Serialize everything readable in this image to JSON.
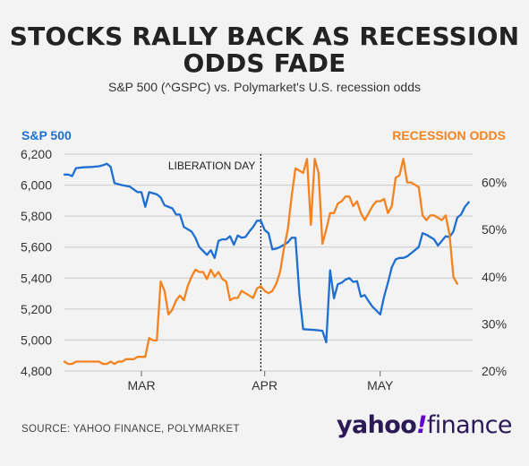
{
  "title_line1": "STOCKS RALLY BACK AS RECESSION",
  "title_line2": "ODDS FADE",
  "subtitle": "S&P 500 (^GSPC) vs. Polymarket's U.S. recession odds",
  "source": "SOURCE: YAHOO FINANCE, POLYMARKET",
  "logo": {
    "word": "yahoo",
    "mark": "!",
    "suffix": "finance"
  },
  "colors": {
    "sp500": "#1f6fd1",
    "recession": "#f4831f",
    "grid": "#c9c9c9",
    "text": "#333333"
  },
  "chart_data": {
    "type": "line",
    "title": "STOCKS RALLY BACK AS RECESSION ODDS FADE",
    "left_axis_label": "S&P 500",
    "right_axis_label": "RECESSION ODDS",
    "x_tick_labels": [
      "MAR",
      "APR",
      "MAY"
    ],
    "y_left_ticks": [
      "6,200",
      "6,000",
      "5,800",
      "5,600",
      "5,400",
      "5,200",
      "5,000",
      "4,800"
    ],
    "y_right_ticks": [
      "60%",
      "50%",
      "40%",
      "30%",
      "20%"
    ],
    "ylim_left": [
      4800,
      6200
    ],
    "ylim_right": [
      20,
      66
    ],
    "annotation": "LIBERATION DAY",
    "grid": true,
    "x_index_range": [
      0,
      106
    ],
    "x_tick_index": [
      20,
      52,
      82
    ],
    "annotation_index": 51,
    "series": [
      {
        "name": "S&P 500",
        "axis": "left",
        "points": [
          [
            0,
            6068
          ],
          [
            1,
            6068
          ],
          [
            2,
            6058
          ],
          [
            3,
            6110
          ],
          [
            5,
            6115
          ],
          [
            7,
            6117
          ],
          [
            9,
            6122
          ],
          [
            10,
            6128
          ],
          [
            11,
            6138
          ],
          [
            12,
            6118
          ],
          [
            13,
            6013
          ],
          [
            15,
            6000
          ],
          [
            17,
            5990
          ],
          [
            19,
            5955
          ],
          [
            20,
            5955
          ],
          [
            21,
            5860
          ],
          [
            22,
            5955
          ],
          [
            24,
            5940
          ],
          [
            25,
            5920
          ],
          [
            26,
            5870
          ],
          [
            28,
            5850
          ],
          [
            29,
            5810
          ],
          [
            30,
            5810
          ],
          [
            31,
            5730
          ],
          [
            33,
            5700
          ],
          [
            34,
            5660
          ],
          [
            35,
            5600
          ],
          [
            36,
            5575
          ],
          [
            37,
            5550
          ],
          [
            38,
            5580
          ],
          [
            39,
            5530
          ],
          [
            40,
            5640
          ],
          [
            41,
            5650
          ],
          [
            42,
            5650
          ],
          [
            43,
            5670
          ],
          [
            44,
            5615
          ],
          [
            45,
            5675
          ],
          [
            46,
            5660
          ],
          [
            47,
            5665
          ],
          [
            48,
            5700
          ],
          [
            49,
            5730
          ],
          [
            50,
            5770
          ],
          [
            51,
            5770
          ],
          [
            52,
            5710
          ],
          [
            53,
            5690
          ],
          [
            54,
            5585
          ],
          [
            55,
            5590
          ],
          [
            56,
            5600
          ],
          [
            57,
            5615
          ],
          [
            58,
            5630
          ],
          [
            59,
            5660
          ],
          [
            60,
            5660
          ],
          [
            61,
            5300
          ],
          [
            62,
            5070
          ],
          [
            65,
            5065
          ],
          [
            67,
            5060
          ],
          [
            68,
            4985
          ],
          [
            69,
            5450
          ],
          [
            70,
            5270
          ],
          [
            71,
            5360
          ],
          [
            72,
            5370
          ],
          [
            73,
            5390
          ],
          [
            74,
            5400
          ],
          [
            75,
            5375
          ],
          [
            76,
            5380
          ],
          [
            77,
            5280
          ],
          [
            78,
            5290
          ],
          [
            79,
            5250
          ],
          [
            80,
            5215
          ],
          [
            81,
            5190
          ],
          [
            82,
            5165
          ],
          [
            83,
            5280
          ],
          [
            84,
            5370
          ],
          [
            85,
            5470
          ],
          [
            86,
            5520
          ],
          [
            87,
            5530
          ],
          [
            88,
            5530
          ],
          [
            89,
            5540
          ],
          [
            90,
            5560
          ],
          [
            91,
            5580
          ],
          [
            92,
            5600
          ],
          [
            93,
            5690
          ],
          [
            94,
            5680
          ],
          [
            95,
            5665
          ],
          [
            96,
            5650
          ],
          [
            97,
            5610
          ],
          [
            98,
            5640
          ],
          [
            99,
            5670
          ],
          [
            100,
            5665
          ],
          [
            101,
            5700
          ],
          [
            102,
            5790
          ],
          [
            103,
            5810
          ],
          [
            104,
            5860
          ],
          [
            105,
            5890
          ]
        ]
      },
      {
        "name": "RECESSION ODDS",
        "axis": "right",
        "points": [
          [
            0,
            22
          ],
          [
            1,
            21.5
          ],
          [
            2,
            21.5
          ],
          [
            3,
            22
          ],
          [
            5,
            22
          ],
          [
            7,
            22
          ],
          [
            9,
            22
          ],
          [
            10,
            21.5
          ],
          [
            11,
            21.5
          ],
          [
            12,
            22
          ],
          [
            13,
            21.5
          ],
          [
            14,
            22
          ],
          [
            15,
            22
          ],
          [
            16,
            22.5
          ],
          [
            17,
            22.5
          ],
          [
            18,
            22.5
          ],
          [
            19,
            23
          ],
          [
            20,
            23
          ],
          [
            21,
            23
          ],
          [
            22,
            27
          ],
          [
            23,
            26.5
          ],
          [
            24,
            26.5
          ],
          [
            25,
            39
          ],
          [
            26,
            37
          ],
          [
            27,
            32
          ],
          [
            28,
            33
          ],
          [
            29,
            35
          ],
          [
            30,
            36
          ],
          [
            31,
            35
          ],
          [
            32,
            38
          ],
          [
            33,
            40
          ],
          [
            34,
            41.5
          ],
          [
            35,
            41
          ],
          [
            36,
            41
          ],
          [
            37,
            39.5
          ],
          [
            38,
            41.5
          ],
          [
            39,
            40
          ],
          [
            40,
            41
          ],
          [
            41,
            39.5
          ],
          [
            42,
            39
          ],
          [
            43,
            35
          ],
          [
            44,
            35.5
          ],
          [
            45,
            35.5
          ],
          [
            46,
            37
          ],
          [
            47,
            36.5
          ],
          [
            48,
            36
          ],
          [
            49,
            35.5
          ],
          [
            50,
            37.5
          ],
          [
            51,
            38
          ],
          [
            52,
            37
          ],
          [
            53,
            36.5
          ],
          [
            54,
            37
          ],
          [
            55,
            38.5
          ],
          [
            56,
            41
          ],
          [
            57,
            46
          ],
          [
            58,
            50
          ],
          [
            59,
            57
          ],
          [
            60,
            63
          ],
          [
            61,
            62.5
          ],
          [
            62,
            62
          ],
          [
            63,
            65
          ],
          [
            64,
            51
          ],
          [
            65,
            65
          ],
          [
            66,
            62
          ],
          [
            67,
            47
          ],
          [
            68,
            50
          ],
          [
            69,
            53.5
          ],
          [
            70,
            53.5
          ],
          [
            71,
            55.5
          ],
          [
            72,
            56
          ],
          [
            73,
            57
          ],
          [
            74,
            57
          ],
          [
            75,
            55
          ],
          [
            76,
            56
          ],
          [
            77,
            53.5
          ],
          [
            78,
            52
          ],
          [
            79,
            53.5
          ],
          [
            80,
            55
          ],
          [
            81,
            56
          ],
          [
            82,
            56
          ],
          [
            83,
            56.5
          ],
          [
            84,
            53.5
          ],
          [
            85,
            55
          ],
          [
            86,
            61
          ],
          [
            87,
            61.5
          ],
          [
            88,
            65
          ],
          [
            89,
            60
          ],
          [
            90,
            60
          ],
          [
            91,
            59.5
          ],
          [
            92,
            59
          ],
          [
            93,
            53
          ],
          [
            94,
            52
          ],
          [
            95,
            53
          ],
          [
            96,
            53
          ],
          [
            97,
            52.5
          ],
          [
            98,
            52
          ],
          [
            99,
            53
          ],
          [
            100,
            49
          ],
          [
            101,
            40
          ],
          [
            102,
            38.5
          ]
        ]
      }
    ]
  }
}
